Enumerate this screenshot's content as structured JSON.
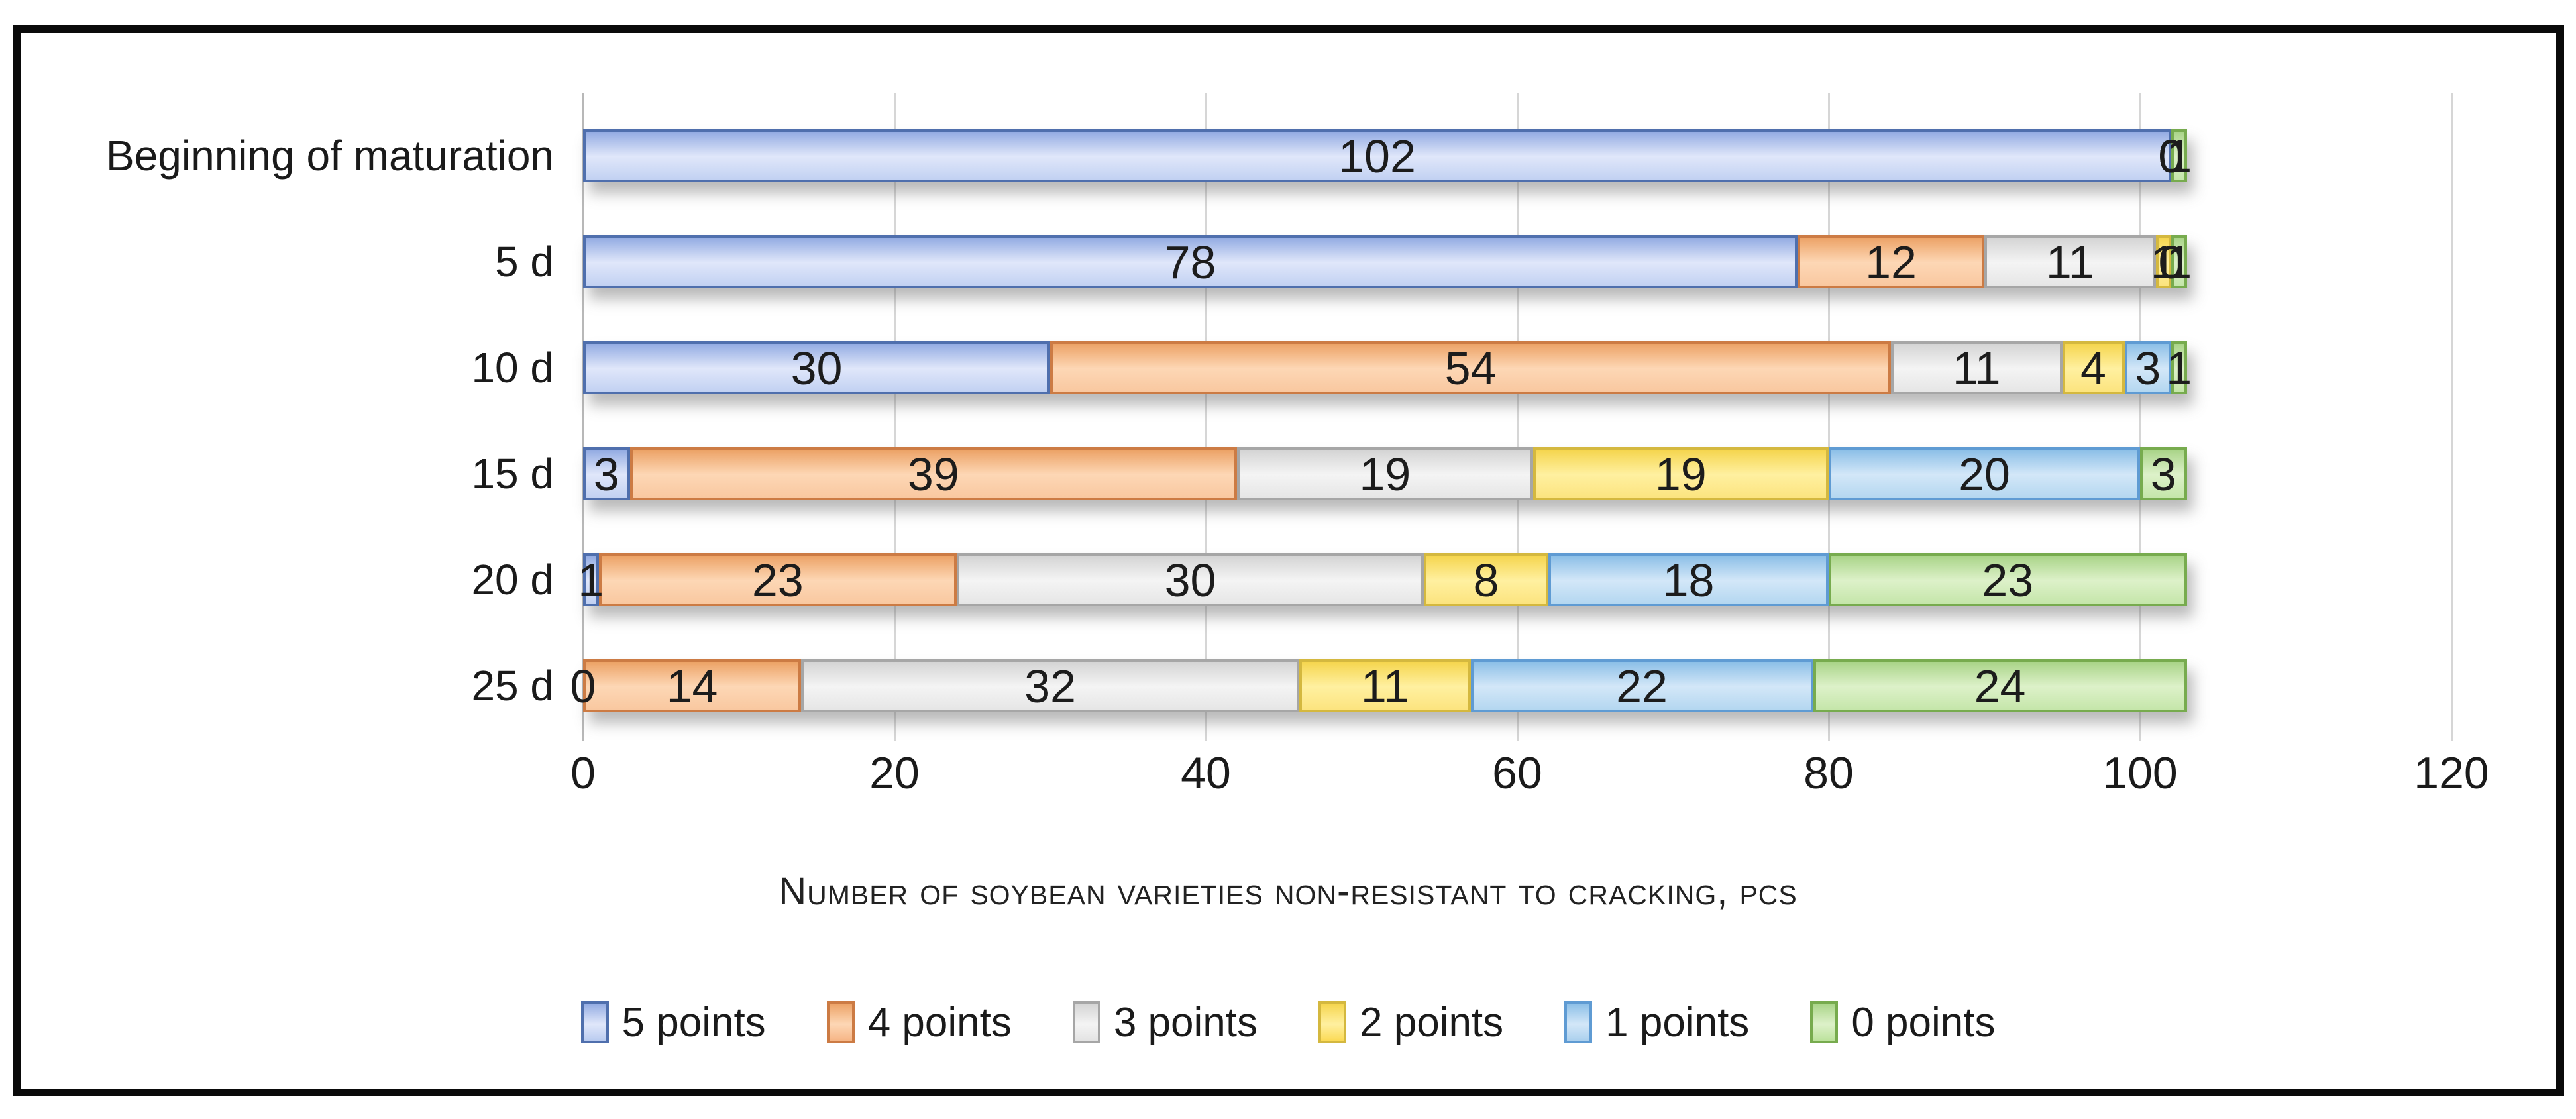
{
  "figure": {
    "background": "#ffffff",
    "frame_border_color": "#0a0a0a",
    "gridline_color": "#d6d6d6",
    "text_color": "#1a1a1a"
  },
  "chart_data": {
    "type": "bar",
    "orientation": "horizontal-stacked",
    "title": "",
    "xlabel": "Number of soybean varieties non-resistant to cracking, pcs",
    "categories": [
      "Beginning of maturation",
      "5 d",
      "10 d",
      "15 d",
      "20 d",
      "25 d"
    ],
    "series": [
      {
        "name": "5 points",
        "values": [
          102,
          78,
          30,
          3,
          1,
          0
        ],
        "border": "#4f6fad",
        "grad_top": "#93abe2",
        "grad_mid": "#e0e7fa",
        "grad_bot": "#c2d1f2",
        "legend_fill": "#b9cbf0"
      },
      {
        "name": "4 points",
        "values": [
          0,
          12,
          54,
          39,
          23,
          14
        ],
        "border": "#cc7b44",
        "grad_top": "#eca266",
        "grad_mid": "#fdd7b5",
        "grad_bot": "#f9c8a0",
        "legend_fill": "#f6b585"
      },
      {
        "name": "3 points",
        "values": [
          0,
          11,
          11,
          19,
          30,
          32
        ],
        "border": "#a6a6a6",
        "grad_top": "#d4d4d4",
        "grad_mid": "#f4f4f4",
        "grad_bot": "#e6e6e6",
        "legend_fill": "#e3e3e3"
      },
      {
        "name": "2 points",
        "values": [
          0,
          1,
          4,
          19,
          8,
          11
        ],
        "border": "#d4b83f",
        "grad_top": "#f5d54e",
        "grad_mid": "#fff0a0",
        "grad_bot": "#fce47f",
        "legend_fill": "#fbda55"
      },
      {
        "name": "1 points",
        "values": [
          0,
          0,
          3,
          20,
          18,
          22
        ],
        "border": "#5f9bd3",
        "grad_top": "#8cbfe7",
        "grad_mid": "#d3e7f8",
        "grad_bot": "#b4d7f0",
        "legend_fill": "#abd0ee"
      },
      {
        "name": "0 points",
        "values": [
          1,
          1,
          1,
          3,
          23,
          24
        ],
        "border": "#77ab4e",
        "grad_top": "#a9d488",
        "grad_mid": "#ddf1c9",
        "grad_bot": "#c5e6aa",
        "legend_fill": "#bce29c"
      }
    ],
    "xlim": [
      0,
      120
    ],
    "xticks": [
      0,
      20,
      40,
      60,
      80,
      100,
      120
    ],
    "grid": true,
    "data_labels": true,
    "legend_position": "bottom"
  }
}
